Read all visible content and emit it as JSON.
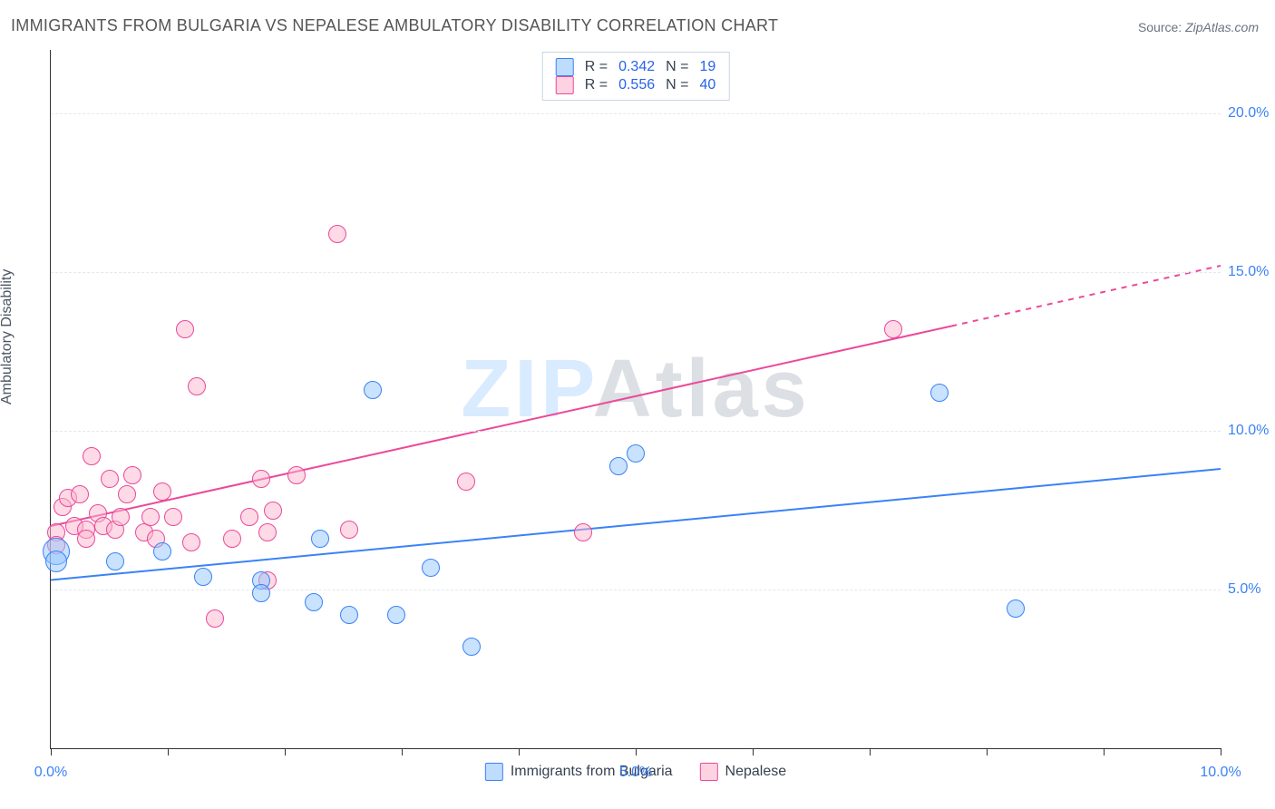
{
  "title": "IMMIGRANTS FROM BULGARIA VS NEPALESE AMBULATORY DISABILITY CORRELATION CHART",
  "source_label": "Source: ",
  "source_value": "ZipAtlas.com",
  "ylabel": "Ambulatory Disability",
  "watermark_part1": "ZIP",
  "watermark_part2": "Atlas",
  "colors": {
    "blue_fill": "rgba(147,197,253,0.5)",
    "blue_stroke": "#3b82f6",
    "pink_fill": "rgba(251,182,206,0.5)",
    "pink_stroke": "#ec4899",
    "grid": "#e2e8f0",
    "axis": "#333333",
    "tick_text": "#3b82f6",
    "title_text": "#555555"
  },
  "chart": {
    "xlim": [
      0,
      10
    ],
    "ylim": [
      0,
      22
    ],
    "x_ticks": [
      0,
      1,
      2,
      3,
      4,
      5,
      6,
      7,
      8,
      9,
      10
    ],
    "x_tick_labels": {
      "0": "0.0%",
      "5": "5.0%",
      "10": "10.0%"
    },
    "y_gridlines": [
      5,
      10,
      15,
      20
    ],
    "y_tick_labels": {
      "5": "5.0%",
      "10": "10.0%",
      "15": "15.0%",
      "20": "20.0%"
    },
    "marker_radius": 9,
    "line_width": 2,
    "title_fontsize": 18,
    "label_fontsize": 16,
    "tick_fontsize": 16
  },
  "series": {
    "blue": {
      "name": "Immigrants from Bulgaria",
      "R": "0.342",
      "N": "19",
      "points": [
        {
          "x": 0.05,
          "y": 6.2,
          "r": 14
        },
        {
          "x": 0.05,
          "y": 5.9,
          "r": 11
        },
        {
          "x": 0.55,
          "y": 5.9
        },
        {
          "x": 0.95,
          "y": 6.2
        },
        {
          "x": 1.3,
          "y": 5.4
        },
        {
          "x": 1.8,
          "y": 5.3
        },
        {
          "x": 1.8,
          "y": 4.9
        },
        {
          "x": 2.25,
          "y": 4.6
        },
        {
          "x": 2.3,
          "y": 6.6
        },
        {
          "x": 2.55,
          "y": 4.2
        },
        {
          "x": 2.95,
          "y": 4.2
        },
        {
          "x": 2.75,
          "y": 11.3
        },
        {
          "x": 3.25,
          "y": 5.7
        },
        {
          "x": 3.6,
          "y": 3.2
        },
        {
          "x": 4.85,
          "y": 8.9
        },
        {
          "x": 5.0,
          "y": 9.3
        },
        {
          "x": 7.6,
          "y": 11.2
        },
        {
          "x": 8.25,
          "y": 4.4
        }
      ],
      "trend": {
        "x1": 0.0,
        "y1": 5.3,
        "x2": 10.0,
        "y2": 8.8
      }
    },
    "pink": {
      "name": "Nepalese",
      "R": "0.556",
      "N": "40",
      "points": [
        {
          "x": 0.05,
          "y": 6.8
        },
        {
          "x": 0.05,
          "y": 6.4
        },
        {
          "x": 0.1,
          "y": 7.6
        },
        {
          "x": 0.15,
          "y": 7.9
        },
        {
          "x": 0.2,
          "y": 7.0
        },
        {
          "x": 0.25,
          "y": 8.0
        },
        {
          "x": 0.3,
          "y": 6.9
        },
        {
          "x": 0.3,
          "y": 6.6
        },
        {
          "x": 0.35,
          "y": 9.2
        },
        {
          "x": 0.4,
          "y": 7.4
        },
        {
          "x": 0.45,
          "y": 7.0
        },
        {
          "x": 0.5,
          "y": 8.5
        },
        {
          "x": 0.55,
          "y": 6.9
        },
        {
          "x": 0.6,
          "y": 7.3
        },
        {
          "x": 0.65,
          "y": 8.0
        },
        {
          "x": 0.7,
          "y": 8.6
        },
        {
          "x": 0.8,
          "y": 6.8
        },
        {
          "x": 0.85,
          "y": 7.3
        },
        {
          "x": 0.9,
          "y": 6.6
        },
        {
          "x": 0.95,
          "y": 8.1
        },
        {
          "x": 1.05,
          "y": 7.3
        },
        {
          "x": 1.15,
          "y": 13.2
        },
        {
          "x": 1.2,
          "y": 6.5
        },
        {
          "x": 1.25,
          "y": 11.4
        },
        {
          "x": 1.4,
          "y": 4.1
        },
        {
          "x": 1.55,
          "y": 6.6
        },
        {
          "x": 1.7,
          "y": 7.3
        },
        {
          "x": 1.8,
          "y": 8.5
        },
        {
          "x": 1.85,
          "y": 6.8
        },
        {
          "x": 1.85,
          "y": 5.3
        },
        {
          "x": 1.9,
          "y": 7.5
        },
        {
          "x": 2.1,
          "y": 8.6
        },
        {
          "x": 2.45,
          "y": 16.2
        },
        {
          "x": 2.55,
          "y": 6.9
        },
        {
          "x": 3.55,
          "y": 8.4
        },
        {
          "x": 4.55,
          "y": 6.8
        },
        {
          "x": 7.2,
          "y": 13.2
        }
      ],
      "trend_solid": {
        "x1": 0.0,
        "y1": 7.0,
        "x2": 7.7,
        "y2": 13.3
      },
      "trend_dashed": {
        "x1": 7.7,
        "y1": 13.3,
        "x2": 10.0,
        "y2": 15.2
      }
    }
  },
  "legend_top": {
    "rows": [
      {
        "swatch": "blue",
        "R_label": "R =",
        "R_val": "0.342",
        "N_label": "N =",
        "N_val": "19"
      },
      {
        "swatch": "pink",
        "R_label": "R =",
        "R_val": "0.556",
        "N_label": "N =",
        "40": "40",
        "N_val": "40"
      }
    ]
  },
  "legend_bottom": [
    {
      "swatch": "blue",
      "label": "Immigrants from Bulgaria"
    },
    {
      "swatch": "pink",
      "label": "Nepalese"
    }
  ]
}
